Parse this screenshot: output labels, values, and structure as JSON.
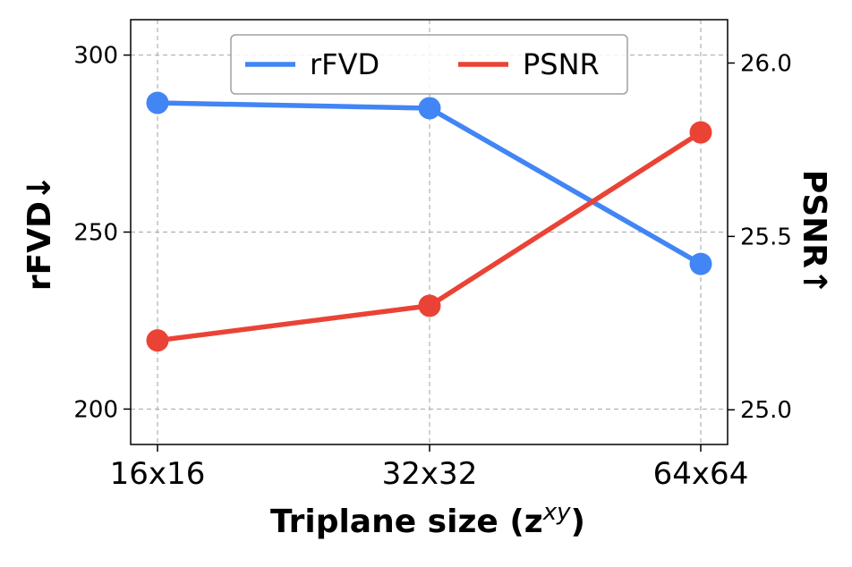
{
  "chart_data": {
    "type": "line",
    "categories": [
      "16x16",
      "32x32",
      "64x64"
    ],
    "xlabel": "Triplane size (z",
    "xlabel_sup": "xy",
    "xlabel_end": ")",
    "ylabel_left": "rFVD↓",
    "ylabel_right": "PSNR↑",
    "left_axis": {
      "ylim": [
        190,
        310
      ],
      "ticks": [
        200,
        250,
        300
      ],
      "tick_labels": [
        "200",
        "250",
        "300"
      ]
    },
    "right_axis": {
      "ylim": [
        24.9,
        26.125
      ],
      "ticks": [
        25.0,
        25.5,
        26.0
      ],
      "tick_labels": [
        "25.0",
        "25.5",
        "26.0"
      ]
    },
    "series": [
      {
        "name": "rFVD",
        "axis": "left",
        "color": "#4285F4",
        "values": [
          286.5,
          285,
          241
        ]
      },
      {
        "name": "PSNR",
        "axis": "right",
        "color": "#EA4335",
        "values": [
          25.2,
          25.3,
          25.8
        ]
      }
    ],
    "grid": true,
    "legend": {
      "position": "top-center",
      "columns": 2
    }
  }
}
